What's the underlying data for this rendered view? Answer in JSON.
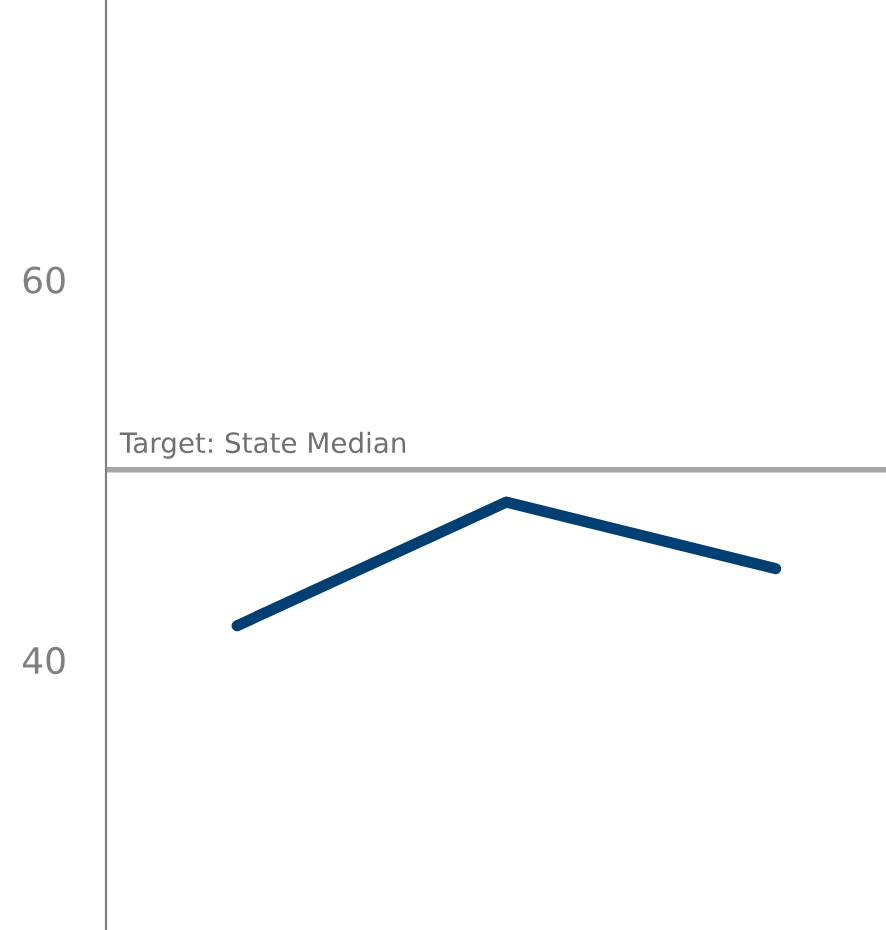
{
  "chart_data": {
    "type": "line",
    "categories": [
      null,
      null,
      null
    ],
    "series": [
      {
        "color": "#003f72",
        "values": [
          41.8,
          48.3,
          44.8
        ]
      }
    ],
    "ylim": [
      25.8,
      74.7
    ],
    "yticks": [
      40,
      60
    ],
    "grid": false,
    "legend": false,
    "marker": "none",
    "line_style": "solid",
    "ref_lines": [
      {
        "axis": "y",
        "value": 50,
        "label": "Target: State Median",
        "color": "#a6a6a6"
      }
    ]
  }
}
